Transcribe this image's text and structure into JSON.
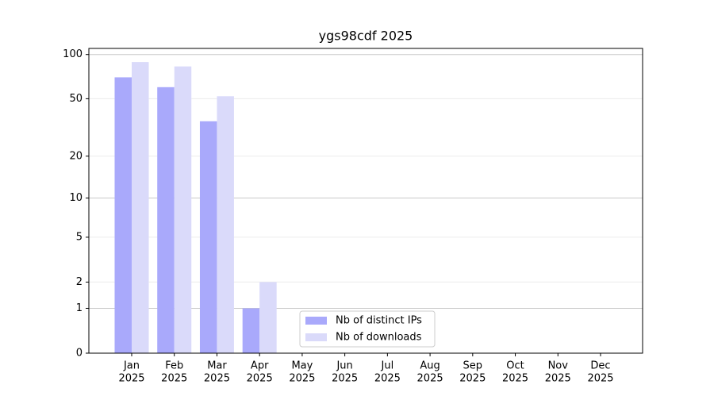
{
  "chart_data": {
    "type": "bar",
    "title": "ygs98cdf 2025",
    "categories": [
      [
        "Jan",
        "2025"
      ],
      [
        "Feb",
        "2025"
      ],
      [
        "Mar",
        "2025"
      ],
      [
        "Apr",
        "2025"
      ],
      [
        "May",
        "2025"
      ],
      [
        "Jun",
        "2025"
      ],
      [
        "Jul",
        "2025"
      ],
      [
        "Aug",
        "2025"
      ],
      [
        "Sep",
        "2025"
      ],
      [
        "Oct",
        "2025"
      ],
      [
        "Nov",
        "2025"
      ],
      [
        "Dec",
        "2025"
      ]
    ],
    "series": [
      {
        "name": "Nb of distinct IPs",
        "color": "#a9a9fb",
        "values": [
          70,
          60,
          35,
          1,
          null,
          null,
          null,
          null,
          null,
          null,
          null,
          null
        ]
      },
      {
        "name": "Nb of downloads",
        "color": "#dadafa",
        "values": [
          89,
          83,
          52,
          2,
          null,
          null,
          null,
          null,
          null,
          null,
          null,
          null
        ]
      }
    ],
    "yscale": "symlog",
    "ylim": [
      0,
      110
    ],
    "yticks": [
      0,
      1,
      2,
      5,
      10,
      20,
      50,
      100
    ],
    "grid": true,
    "legend": "lower center"
  }
}
